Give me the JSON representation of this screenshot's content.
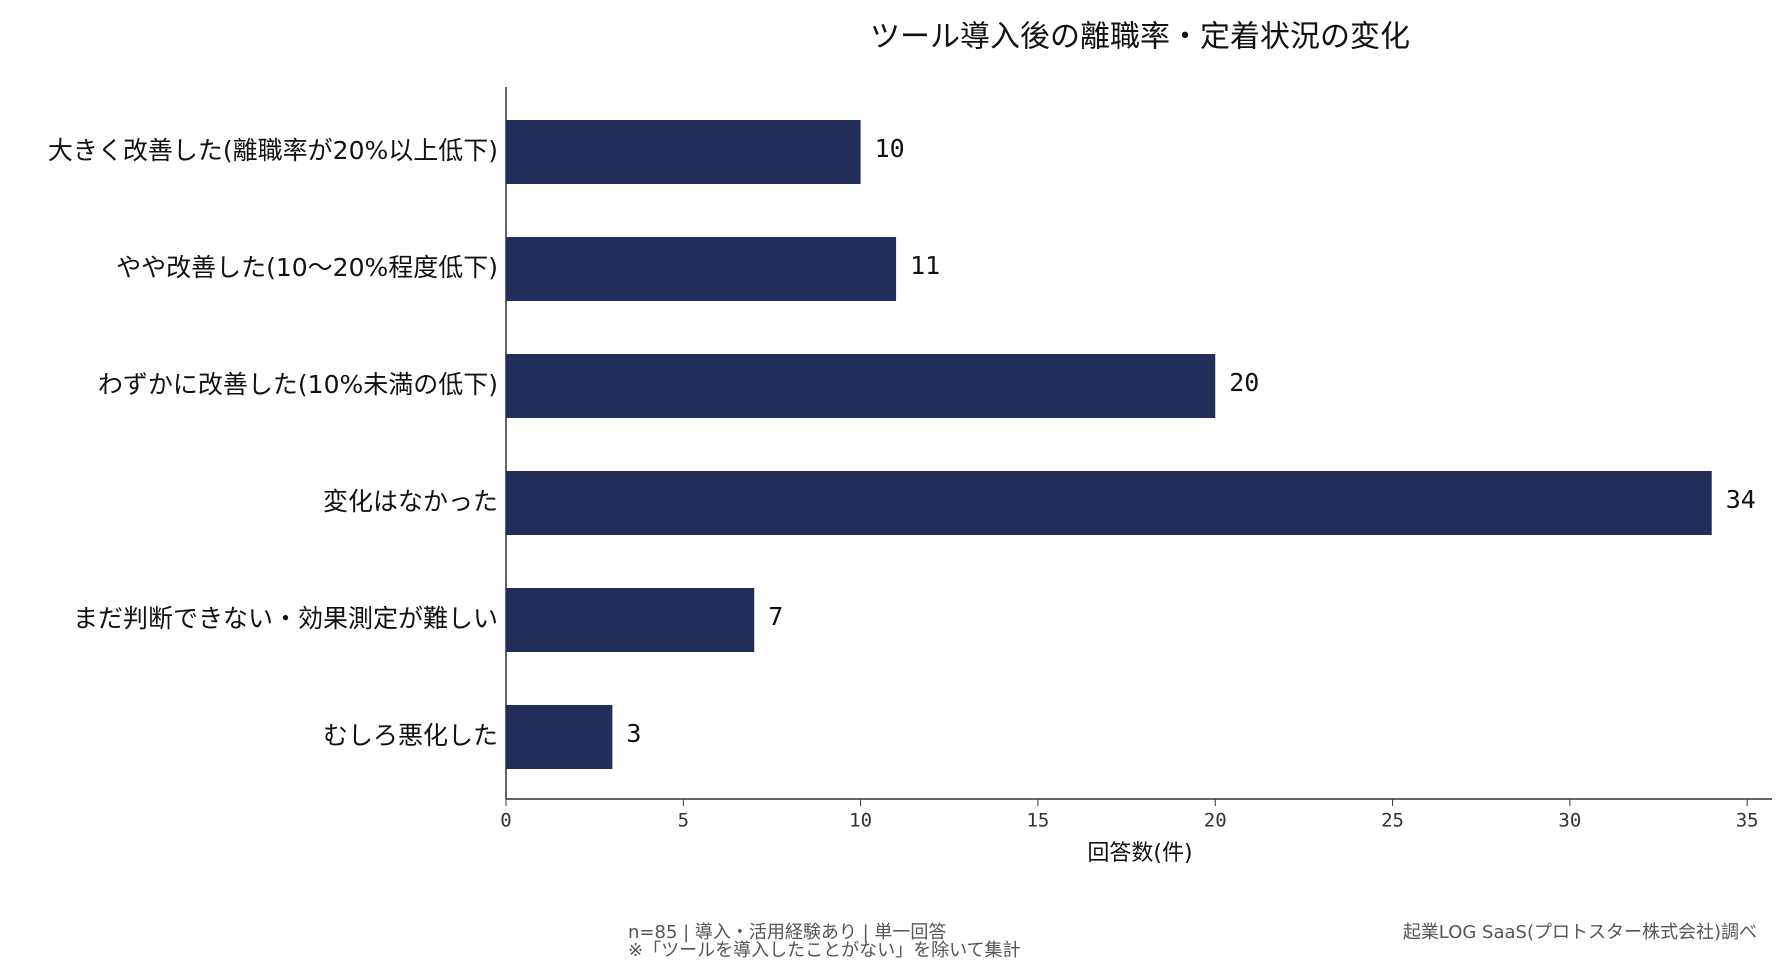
{
  "chart_data": {
    "type": "bar",
    "orientation": "horizontal",
    "title": "ツール導入後の離職率・定着状況の変化",
    "categories": [
      "大きく改善した(離職率が20%以上低下)",
      "やや改善した(10〜20%程度低下)",
      "わずかに改善した(10%未満の低下)",
      "変化はなかった",
      "まだ判断できない・効果測定が難しい",
      "むしろ悪化した"
    ],
    "values": [
      10,
      11,
      20,
      34,
      7,
      3
    ],
    "color": "#222d5a",
    "xlabel": "回答数(件)",
    "xlim": [
      0,
      35.7
    ],
    "xticks": [
      0,
      5,
      10,
      15,
      20,
      25,
      30,
      35
    ],
    "footnotes": [
      "n=85 | 導入・活用経験あり | 単一回答",
      "※「ツールを導入したことがない」を除いて集計"
    ],
    "source": "起業LOG SaaS(プロトスター株式会社)調べ"
  }
}
